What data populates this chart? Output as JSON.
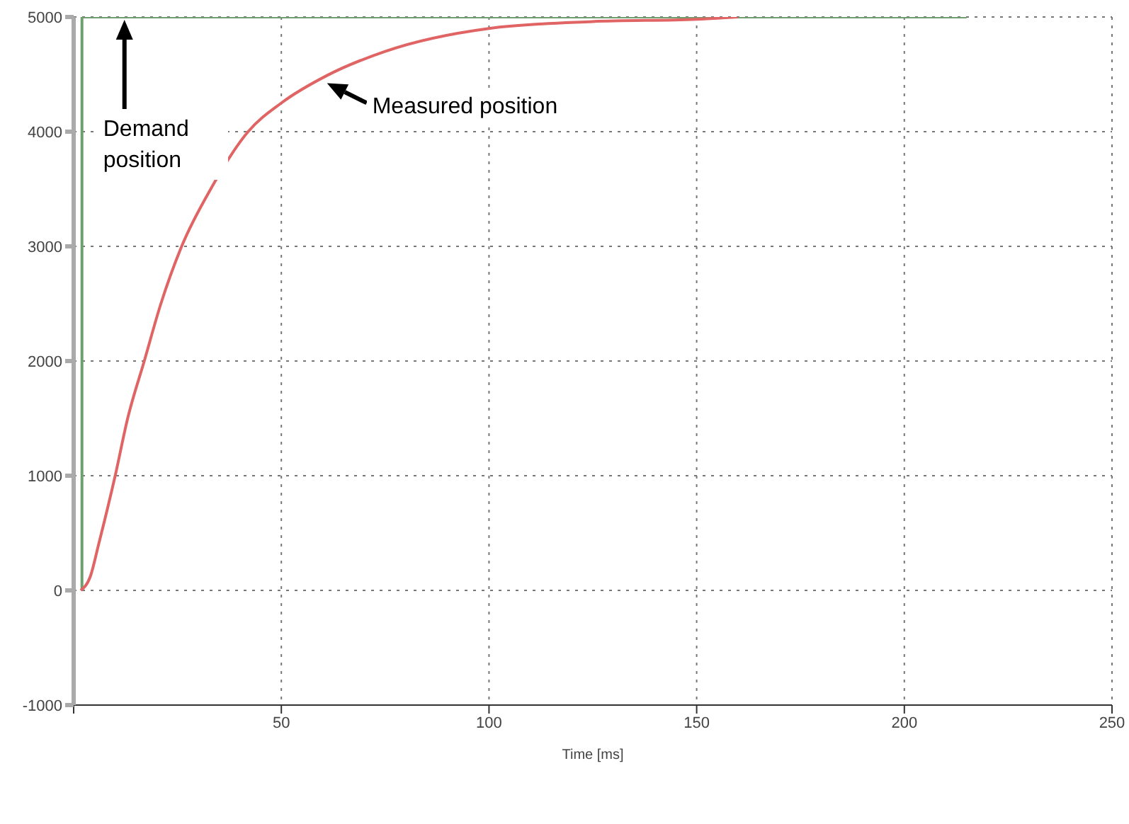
{
  "chart_data": {
    "type": "line",
    "xlabel": "Time [ms]",
    "series": [
      {
        "name": "Demand position",
        "color": "#6f9f6f",
        "x": [
          2,
          2,
          215
        ],
        "values": [
          0,
          5000,
          5000
        ]
      },
      {
        "name": "Measured position",
        "color": "#e06464",
        "x": [
          1.7,
          4,
          6,
          10,
          13,
          17,
          21,
          26,
          33,
          42,
          50,
          61,
          75,
          100,
          125,
          150,
          160
        ],
        "values": [
          0,
          120,
          400,
          1000,
          1500,
          2000,
          2500,
          3000,
          3500,
          4000,
          4250,
          4490,
          4700,
          4900,
          4960,
          4980,
          5000
        ]
      }
    ],
    "xlim": [
      0,
      250
    ],
    "xticks": [
      {
        "value": 0,
        "label": null
      },
      50,
      100,
      150,
      200,
      250
    ],
    "ylim": [
      -1000,
      5000
    ],
    "yticks": [
      -1000,
      0,
      1000,
      2000,
      3000,
      4000,
      5000
    ],
    "grid": true,
    "marker": "none",
    "line_style": "solid"
  }
}
